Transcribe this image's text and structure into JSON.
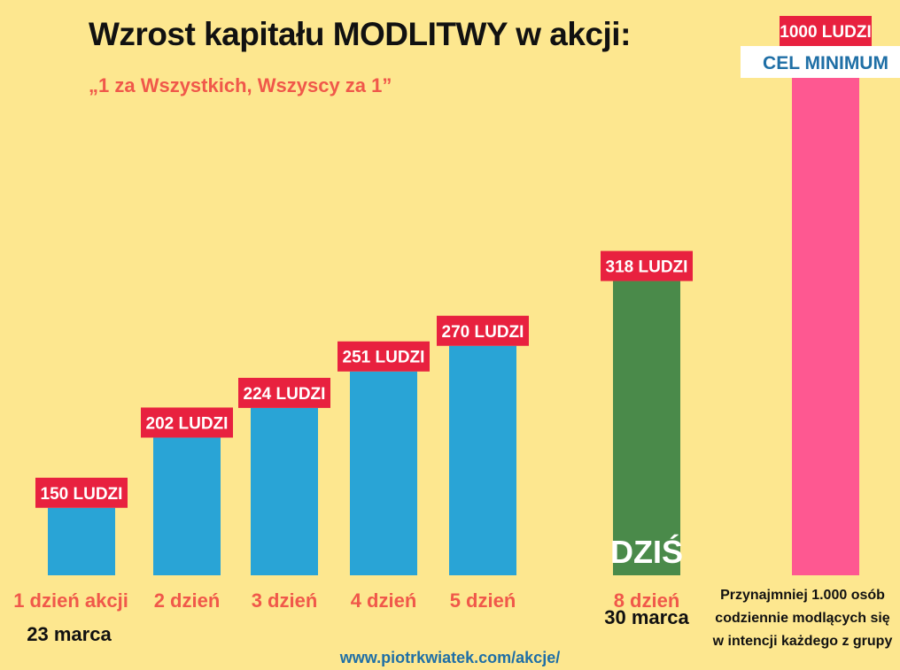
{
  "title": "Wzrost kapitału MODLITWY w akcji:",
  "subtitle": "„1 za Wszystkich, Wszyscy za 1”",
  "footer_url": "www.piotrkwiatek.com/akcje/",
  "colors": {
    "background": "#fde78f",
    "bar_past": "#29a4d6",
    "bar_today": "#4a8a4a",
    "bar_goal": "#fe5891",
    "label_bg": "#e8213f",
    "label_text": "#ffffff",
    "day_label": "#f0584a",
    "date_label": "#111111",
    "goal_text": "#1f6fa6"
  },
  "chart_data": {
    "type": "bar",
    "categories": [
      "1 dzień akcji",
      "2 dzień",
      "3 dzień",
      "4 dzień",
      "5 dzień",
      "8 dzień",
      ""
    ],
    "values": [
      150,
      202,
      224,
      251,
      270,
      318,
      1000
    ],
    "value_labels": [
      "150 LUDZI",
      "202 LUDZI",
      "224 LUDZI",
      "251 LUDZI",
      "270 LUDZI",
      "318 LUDZI",
      "1000 LUDZI"
    ],
    "dates": [
      "23 marca",
      "",
      "",
      "",
      "",
      "30 marca",
      ""
    ],
    "today_label": "DZIŚ",
    "goal_label": "CEL MINIMUM",
    "goal_note": [
      "Przynajmniej 1.000 osób",
      "codziennie modlących się",
      "w intencji każdego z grupy"
    ],
    "ylim": [
      0,
      1000
    ],
    "grid": false
  }
}
